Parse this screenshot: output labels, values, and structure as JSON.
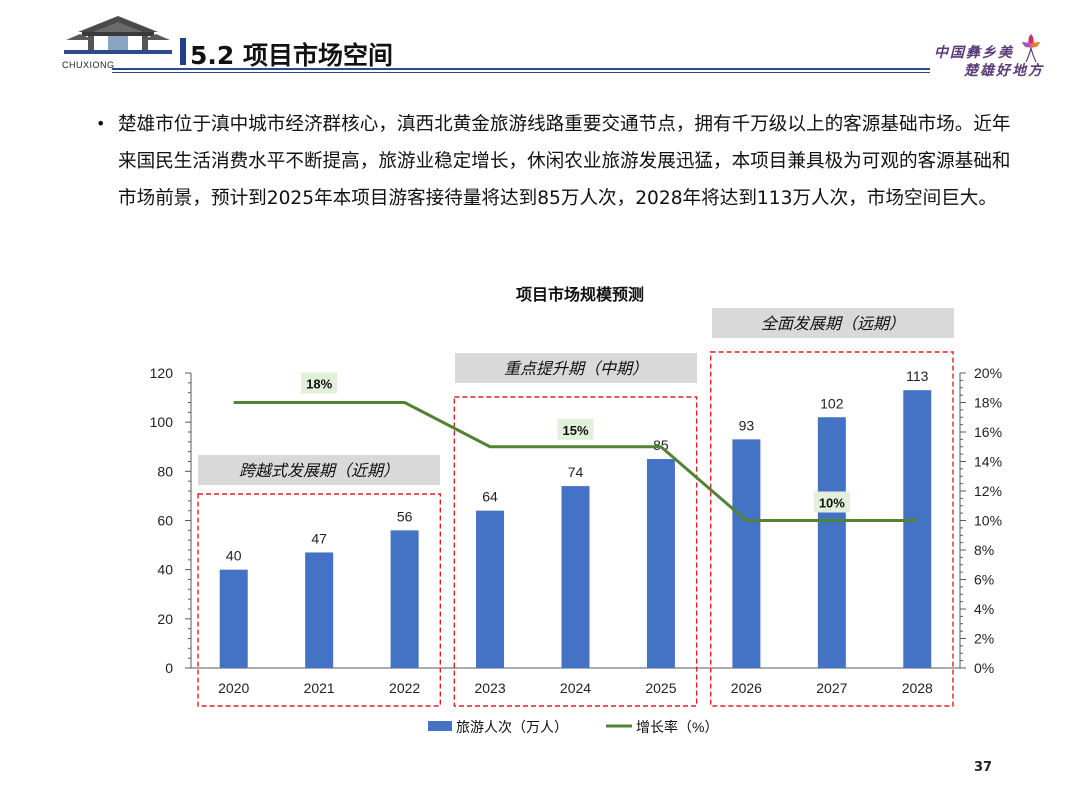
{
  "header": {
    "logo_caption": "CHUXIONG",
    "title": "5.2 项目市场空间",
    "brand_line1": "中国彝乡美",
    "brand_line2": "楚雄好地方"
  },
  "body": {
    "paragraph": "楚雄市位于滇中城市经济群核心，滇西北黄金旅游线路重要交通节点，拥有千万级以上的客源基础市场。近年来国民生活消费水平不断提高，旅游业稳定增长，休闲农业旅游发展迅猛，本项目兼具极为可观的客源基础和市场前景，预计到2025年本项目游客接待量将达到85万人次，2028年将达到113万人次，市场空间巨大。"
  },
  "chart_data": {
    "type": "bar",
    "title": "项目市场规模预测",
    "categories": [
      "2020",
      "2021",
      "2022",
      "2023",
      "2024",
      "2025",
      "2026",
      "2027",
      "2028"
    ],
    "series": [
      {
        "name": "旅游人次（万人）",
        "kind": "bar",
        "axis": "left",
        "color": "#4472c4",
        "values": [
          40,
          47,
          56,
          64,
          74,
          85,
          93,
          102,
          113
        ]
      },
      {
        "name": "增长率（%）",
        "kind": "line",
        "axis": "right",
        "color": "#548235",
        "values": [
          18,
          18,
          18,
          15,
          15,
          15,
          10,
          10,
          10
        ]
      }
    ],
    "left_axis": {
      "min": 0,
      "max": 120,
      "ticks": [
        0,
        20,
        40,
        60,
        80,
        100,
        120
      ]
    },
    "right_axis": {
      "min": 0,
      "max": 20,
      "ticks": [
        "0%",
        "2%",
        "4%",
        "6%",
        "8%",
        "10%",
        "12%",
        "14%",
        "16%",
        "18%",
        "20%"
      ]
    },
    "rate_labels": [
      "18%",
      "15%",
      "10%"
    ],
    "phases": [
      {
        "label": "跨越式发展期（近期）"
      },
      {
        "label": "重点提升期（中期）"
      },
      {
        "label": "全面发展期（远期）"
      }
    ],
    "legend_position": "bottom"
  },
  "footer": {
    "page_number": "37"
  }
}
